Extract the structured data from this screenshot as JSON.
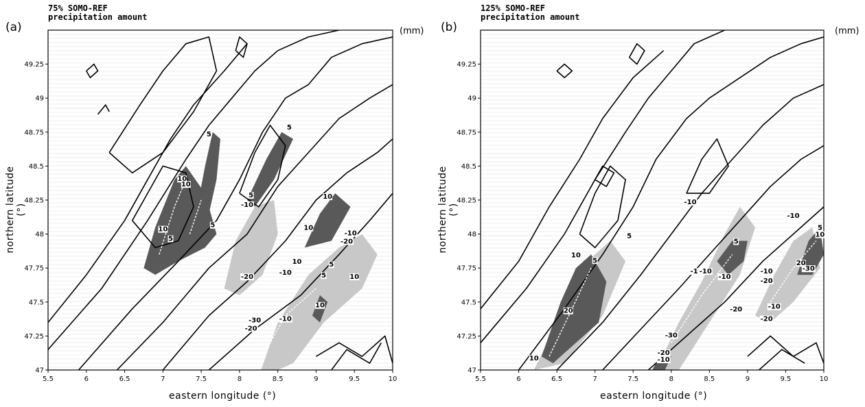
{
  "panels": [
    {
      "letter": "(a)",
      "title_line1": "75% SOMO-REF",
      "title_line2": "precipitation amount",
      "unit": "(mm)",
      "xlabel": "eastern longitude (°)",
      "ylabel": "northern latitude (°)"
    },
    {
      "letter": "(b)",
      "title_line1": "125% SOMO-REF",
      "title_line2": "precipitation amount",
      "unit": "(mm)",
      "xlabel": "eastern longitude (°)",
      "ylabel": "northern latitude (°)"
    }
  ],
  "chart_data": [
    {
      "type": "contour",
      "panel": "(a)",
      "xlim": [
        5.5,
        10
      ],
      "ylim": [
        47,
        49.5
      ],
      "x_ticks": [
        "5.5",
        "6",
        "6.5",
        "7",
        "7.5",
        "8",
        "8.5",
        "9",
        "9.5",
        "10"
      ],
      "y_ticks": [
        "47",
        "47.25",
        "47.5",
        "47.75",
        "48",
        "48.25",
        "48.5",
        "48.75",
        "49",
        "49.25"
      ],
      "contour_labels": [
        {
          "x": 7.6,
          "y": 48.72,
          "text": "5"
        },
        {
          "x": 8.65,
          "y": 48.77,
          "text": "5"
        },
        {
          "x": 7.25,
          "y": 48.39,
          "text": "10"
        },
        {
          "x": 7.3,
          "y": 48.35,
          "text": "10"
        },
        {
          "x": 8.15,
          "y": 48.27,
          "text": "5"
        },
        {
          "x": 8.1,
          "y": 48.2,
          "text": "-10"
        },
        {
          "x": 9.15,
          "y": 48.26,
          "text": "10"
        },
        {
          "x": 8.9,
          "y": 48.03,
          "text": "10"
        },
        {
          "x": 7.0,
          "y": 48.02,
          "text": "10"
        },
        {
          "x": 7.65,
          "y": 48.05,
          "text": "5"
        },
        {
          "x": 7.1,
          "y": 47.95,
          "text": "5"
        },
        {
          "x": 9.45,
          "y": 47.99,
          "text": "-10"
        },
        {
          "x": 9.4,
          "y": 47.93,
          "text": "-20"
        },
        {
          "x": 8.75,
          "y": 47.78,
          "text": "10"
        },
        {
          "x": 9.2,
          "y": 47.76,
          "text": "5"
        },
        {
          "x": 8.1,
          "y": 47.67,
          "text": "-20"
        },
        {
          "x": 8.6,
          "y": 47.7,
          "text": "-10"
        },
        {
          "x": 9.1,
          "y": 47.68,
          "text": "5"
        },
        {
          "x": 9.5,
          "y": 47.67,
          "text": "10"
        },
        {
          "x": 9.05,
          "y": 47.46,
          "text": "10"
        },
        {
          "x": 8.2,
          "y": 47.35,
          "text": "-30"
        },
        {
          "x": 8.6,
          "y": 47.36,
          "text": "-10"
        },
        {
          "x": 8.15,
          "y": 47.29,
          "text": "-20"
        }
      ]
    },
    {
      "type": "contour",
      "panel": "(b)",
      "xlim": [
        5.5,
        10
      ],
      "ylim": [
        47,
        49.5
      ],
      "x_ticks": [
        "5.5",
        "6",
        "6.5",
        "7",
        "7.5",
        "8",
        "8.5",
        "9",
        "9.5",
        "10"
      ],
      "y_ticks": [
        "47",
        "47.25",
        "47.5",
        "47.75",
        "48",
        "48.25",
        "48.5",
        "48.75",
        "49",
        "49.25"
      ],
      "contour_labels": [
        {
          "x": 8.25,
          "y": 48.22,
          "text": "-10"
        },
        {
          "x": 9.6,
          "y": 48.12,
          "text": "-10"
        },
        {
          "x": 9.95,
          "y": 48.03,
          "text": "5"
        },
        {
          "x": 9.95,
          "y": 47.98,
          "text": "10"
        },
        {
          "x": 7.45,
          "y": 47.97,
          "text": "5"
        },
        {
          "x": 8.85,
          "y": 47.93,
          "text": "5"
        },
        {
          "x": 6.75,
          "y": 47.83,
          "text": "10"
        },
        {
          "x": 7.0,
          "y": 47.79,
          "text": "5"
        },
        {
          "x": 9.7,
          "y": 47.77,
          "text": "20"
        },
        {
          "x": 9.8,
          "y": 47.73,
          "text": "-30"
        },
        {
          "x": 8.3,
          "y": 47.71,
          "text": "-1"
        },
        {
          "x": 8.45,
          "y": 47.71,
          "text": "-10"
        },
        {
          "x": 9.25,
          "y": 47.71,
          "text": "-10"
        },
        {
          "x": 9.25,
          "y": 47.64,
          "text": "-20"
        },
        {
          "x": 8.7,
          "y": 47.67,
          "text": "-10"
        },
        {
          "x": 6.65,
          "y": 47.42,
          "text": "20"
        },
        {
          "x": 8.85,
          "y": 47.43,
          "text": "-20"
        },
        {
          "x": 9.35,
          "y": 47.45,
          "text": "-10"
        },
        {
          "x": 9.25,
          "y": 47.36,
          "text": "-20"
        },
        {
          "x": 8.0,
          "y": 47.24,
          "text": "-30"
        },
        {
          "x": 7.9,
          "y": 47.11,
          "text": "-20"
        },
        {
          "x": 7.9,
          "y": 47.06,
          "text": "-10"
        },
        {
          "x": 6.2,
          "y": 47.07,
          "text": "10"
        }
      ]
    }
  ]
}
